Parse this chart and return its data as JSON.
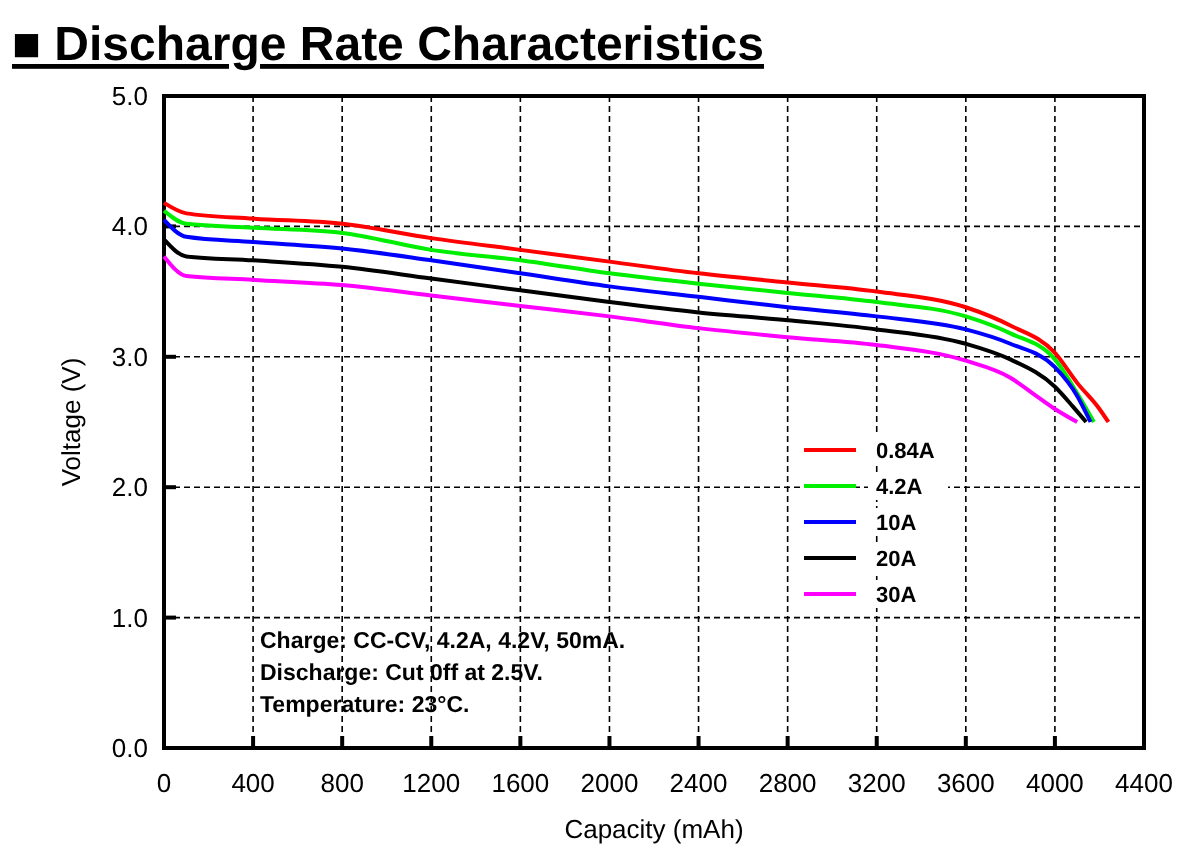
{
  "chart_data": {
    "type": "line",
    "title": "■ Discharge Rate Characteristics",
    "xlabel": "Capacity (mAh)",
    "ylabel": "Voltage (V)",
    "xlim": [
      0,
      4400
    ],
    "xticks": [
      0,
      400,
      800,
      1200,
      1600,
      2000,
      2400,
      2800,
      3200,
      3600,
      4000,
      4400
    ],
    "ylim": [
      0,
      5
    ],
    "yticks": [
      {
        "value": 0,
        "label": "0.0"
      },
      {
        "value": 1,
        "label": "1.0"
      },
      {
        "value": 2,
        "label": "2.0"
      },
      {
        "value": 3,
        "label": "3.0"
      },
      {
        "value": 4,
        "label": "4.0"
      },
      {
        "value": 5,
        "label": "5.0"
      }
    ],
    "grid": true,
    "legend": "right",
    "marker": "none",
    "line_style": "solid",
    "annotations": [
      "Charge: CC-CV, 4.2A, 4.2V, 50mA.",
      "Discharge: Cut 0ff at 2.5V.",
      "Temperature: 23°C."
    ],
    "series": [
      {
        "name": "0.84A",
        "color": "#ff0000",
        "x": [
          0,
          100,
          400,
          800,
          1200,
          1600,
          2000,
          2400,
          2800,
          3200,
          3600,
          3800,
          4000,
          4100,
          4200,
          4240
        ],
        "values": [
          4.18,
          4.1,
          4.06,
          4.02,
          3.91,
          3.82,
          3.73,
          3.64,
          3.57,
          3.5,
          3.38,
          3.24,
          3.03,
          2.8,
          2.6,
          2.5
        ]
      },
      {
        "name": "4.2A",
        "color": "#00ee00",
        "x": [
          0,
          100,
          400,
          800,
          1200,
          1600,
          2000,
          2400,
          2800,
          3200,
          3600,
          3800,
          4000,
          4100,
          4175
        ],
        "values": [
          4.12,
          4.02,
          3.99,
          3.95,
          3.82,
          3.74,
          3.64,
          3.56,
          3.49,
          3.42,
          3.31,
          3.18,
          2.98,
          2.72,
          2.5
        ]
      },
      {
        "name": "10A",
        "color": "#0000ff",
        "x": [
          0,
          100,
          400,
          800,
          1200,
          1600,
          2000,
          2400,
          2800,
          3200,
          3600,
          3800,
          4000,
          4100,
          4160
        ],
        "values": [
          4.05,
          3.92,
          3.88,
          3.83,
          3.74,
          3.64,
          3.54,
          3.46,
          3.38,
          3.31,
          3.21,
          3.1,
          2.92,
          2.7,
          2.5
        ]
      },
      {
        "name": "20A",
        "color": "#000000",
        "x": [
          0,
          100,
          400,
          800,
          1200,
          1600,
          2000,
          2400,
          2800,
          3200,
          3600,
          3800,
          4000,
          4080,
          4140
        ],
        "values": [
          3.9,
          3.77,
          3.74,
          3.69,
          3.6,
          3.51,
          3.42,
          3.34,
          3.28,
          3.21,
          3.1,
          2.98,
          2.77,
          2.62,
          2.5
        ]
      },
      {
        "name": "30A",
        "color": "#ff00ff",
        "x": [
          0,
          100,
          400,
          800,
          1200,
          1600,
          2000,
          2400,
          2800,
          3200,
          3600,
          3800,
          3900,
          4000,
          4100
        ],
        "values": [
          3.77,
          3.62,
          3.59,
          3.55,
          3.47,
          3.39,
          3.31,
          3.22,
          3.15,
          3.09,
          2.97,
          2.84,
          2.72,
          2.6,
          2.5
        ]
      }
    ]
  }
}
